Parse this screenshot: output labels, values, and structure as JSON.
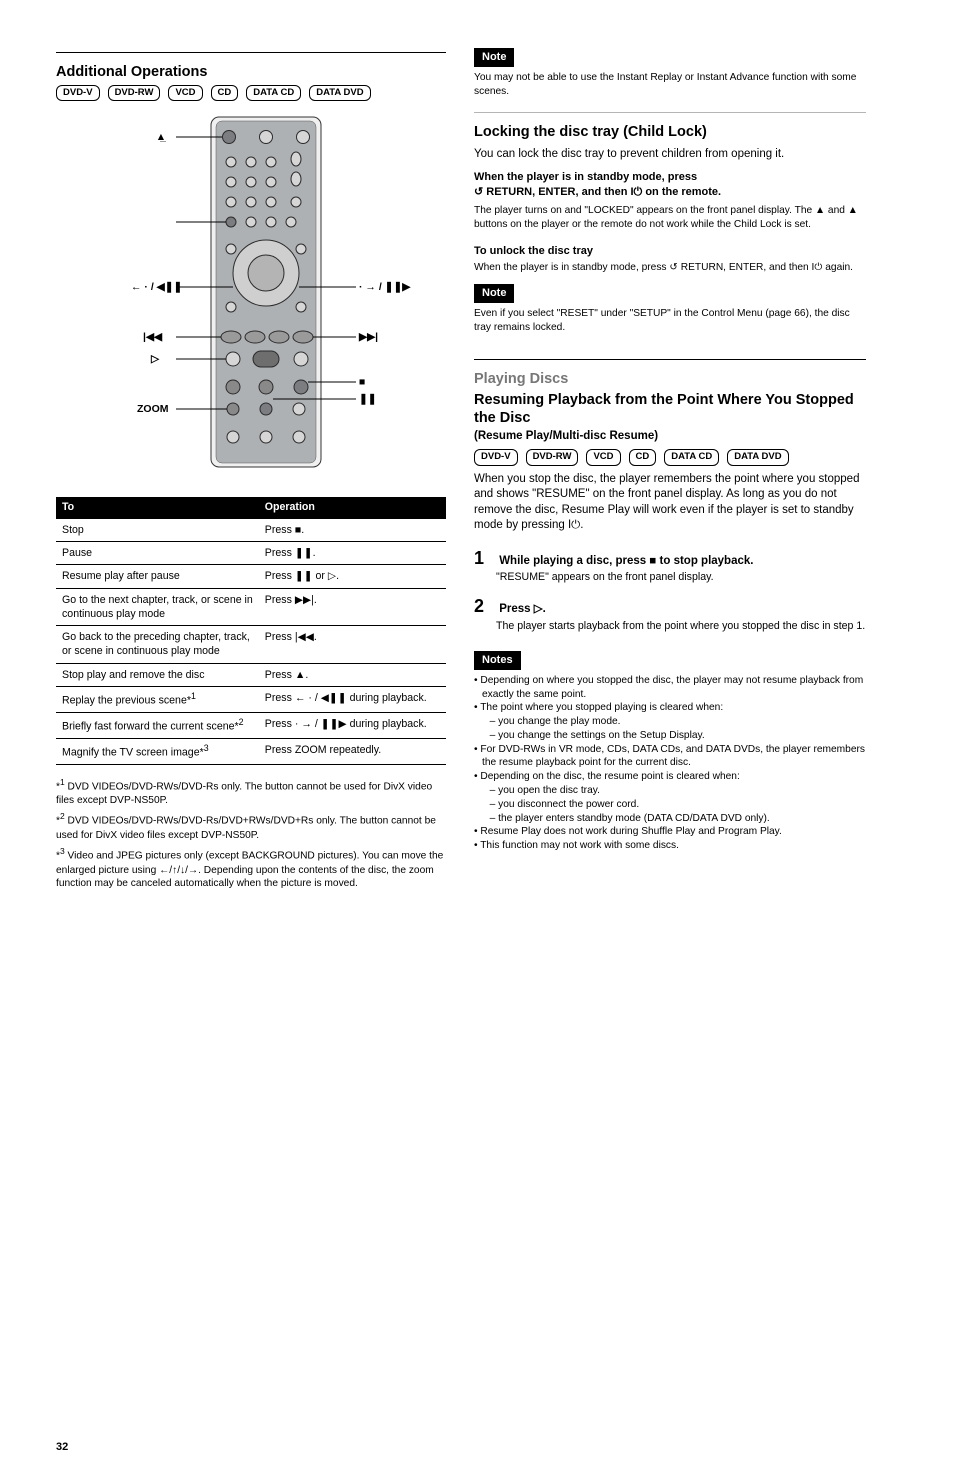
{
  "page_number": "32",
  "left": {
    "section_title": "Additional Operations",
    "badges": [
      "DVD-V",
      "DVD-RW",
      "VCD",
      "CD",
      "DATA CD",
      "DATA DVD"
    ],
    "remote": {
      "pointers": {
        "eject": "Z",
        "left_one": "/",
        "prev": ".",
        "play": "H",
        "next": ">",
        "stop": "x",
        "pause": "X",
        "right_one": "/"
      }
    },
    "table": {
      "head": [
        "To",
        "Operation"
      ],
      "rows": [
        [
          "Stop",
          "Press ■."
        ],
        [
          "Pause",
          "Press <span class='sym'>❚❚</span>."
        ],
        [
          "Resume play after pause",
          "Press <span class='sym'>❚❚</span> or <span class='sym'>▷</span>."
        ],
        [
          "Go to the next chapter, track, or scene in continuous play mode",
          "Press <span class='sym'>▶▶|</span>."
        ],
        [
          "Go back to the preceding chapter, track, or scene in continuous play mode",
          "Press <span class='sym'>|◀◀</span>."
        ],
        [
          "Stop play and remove the disc",
          "Press <span class='sym'>▲</span>."
        ],
        [
          "Replay the previous scene*<sup>1</sup>",
          "Press <span class='sym'>← · / ◀❚❚</span> during playback."
        ],
        [
          "Briefly fast forward the current scene*<sup>2</sup>",
          "Press <span class='sym'>· → / ❚❚▶</span> during playback."
        ],
        [
          "Magnify the TV screen image*<sup>3</sup>",
          "Press ZOOM repeatedly."
        ]
      ]
    },
    "footnotes": [
      "*<sup>1</sup> DVD VIDEOs/DVD-RWs/DVD-Rs only. The button cannot be used for DivX video files except DVP-NS50P.",
      "*<sup>2</sup> DVD VIDEOs/DVD-RWs/DVD-Rs/DVD+RWs/DVD+Rs only. The button cannot be used for DivX video files except DVP-NS50P.",
      "*<sup>3</sup> Video and JPEG pictures only (except BACKGROUND pictures). You can move the enlarged picture using <span class='sym'>←/↑/↓/→</span>. Depending upon the contents of the disc, the zoom function may be canceled automatically when the picture is moved."
    ]
  },
  "right": {
    "note1_hd": "Note",
    "note1": "You may not be able to use the Instant Replay or Instant Advance function with some scenes.",
    "section2_title": "Locking the disc tray (Child Lock)",
    "section2_intro": "You can lock the disc tray to prevent children from opening it.",
    "section2_how_title": "When the player is in standby mode, press",
    "section2_how_body": "<span class='sym'>↺</span> RETURN, ENTER, and then <span class='sym'>I⏻</span> on the remote.",
    "section2_body2": "The player turns on and \"LOCKED\" appears on the front panel display. The <span class='sym'>▲</span> and <span class='sym'>▲</span> buttons on the player or the remote do not work while the Child Lock is set.",
    "section2_unlock_hd": "To unlock the disc tray",
    "section2_unlock": "When the player is in standby mode, press <span class='sym'>↺</span> RETURN, ENTER, and then <span class='sym'>I⏻</span> again.",
    "note2_hd": "Note",
    "note2": "Even if you select \"RESET\" under \"SETUP\" in the Control Menu (page 66), the disc tray remains locked.",
    "resume_light": "Playing Discs",
    "resume_title": "Resuming Playback from the Point Where You Stopped the Disc",
    "resume_sub": "(Resume Play/Multi-disc Resume)",
    "resume_badges": [
      "DVD-V",
      "DVD-RW",
      "VCD",
      "CD",
      "DATA CD",
      "DATA DVD"
    ],
    "resume_intro": "When you stop the disc, the player remembers the point where you stopped and shows \"RESUME\" on the front panel display. As long as you do not remove the disc, Resume Play will work even if the player is set to standby mode by pressing <span class='sym'>I⏻</span>.",
    "step1_title": "While playing a disc, press ■ to stop playback.",
    "step1_body": "\"RESUME\" appears on the front panel display.",
    "step2_title": "Press <span class='sym'>▷</span>.",
    "step2_body": "The player starts playback from the point where you stopped the disc in step 1.",
    "note3_hd": "Notes",
    "notes3": [
      "Depending on where you stopped the disc, the player may not resume playback from exactly the same point.",
      "The point where you stopped playing is cleared when:",
      "– you change the play mode.",
      "– you change the settings on the Setup Display.",
      "For DVD-RWs in VR mode, CDs, DATA CDs, and DATA DVDs, the player remembers the resume playback point for the current disc.",
      "Depending on the disc, the resume point is cleared when:",
      "– you open the disc tray.",
      "– you disconnect the power cord.",
      "– the player enters standby mode (DATA CD/DATA DVD only).",
      "Resume Play does not work during Shuffle Play and Program Play.",
      "This function may not work with some discs."
    ]
  }
}
